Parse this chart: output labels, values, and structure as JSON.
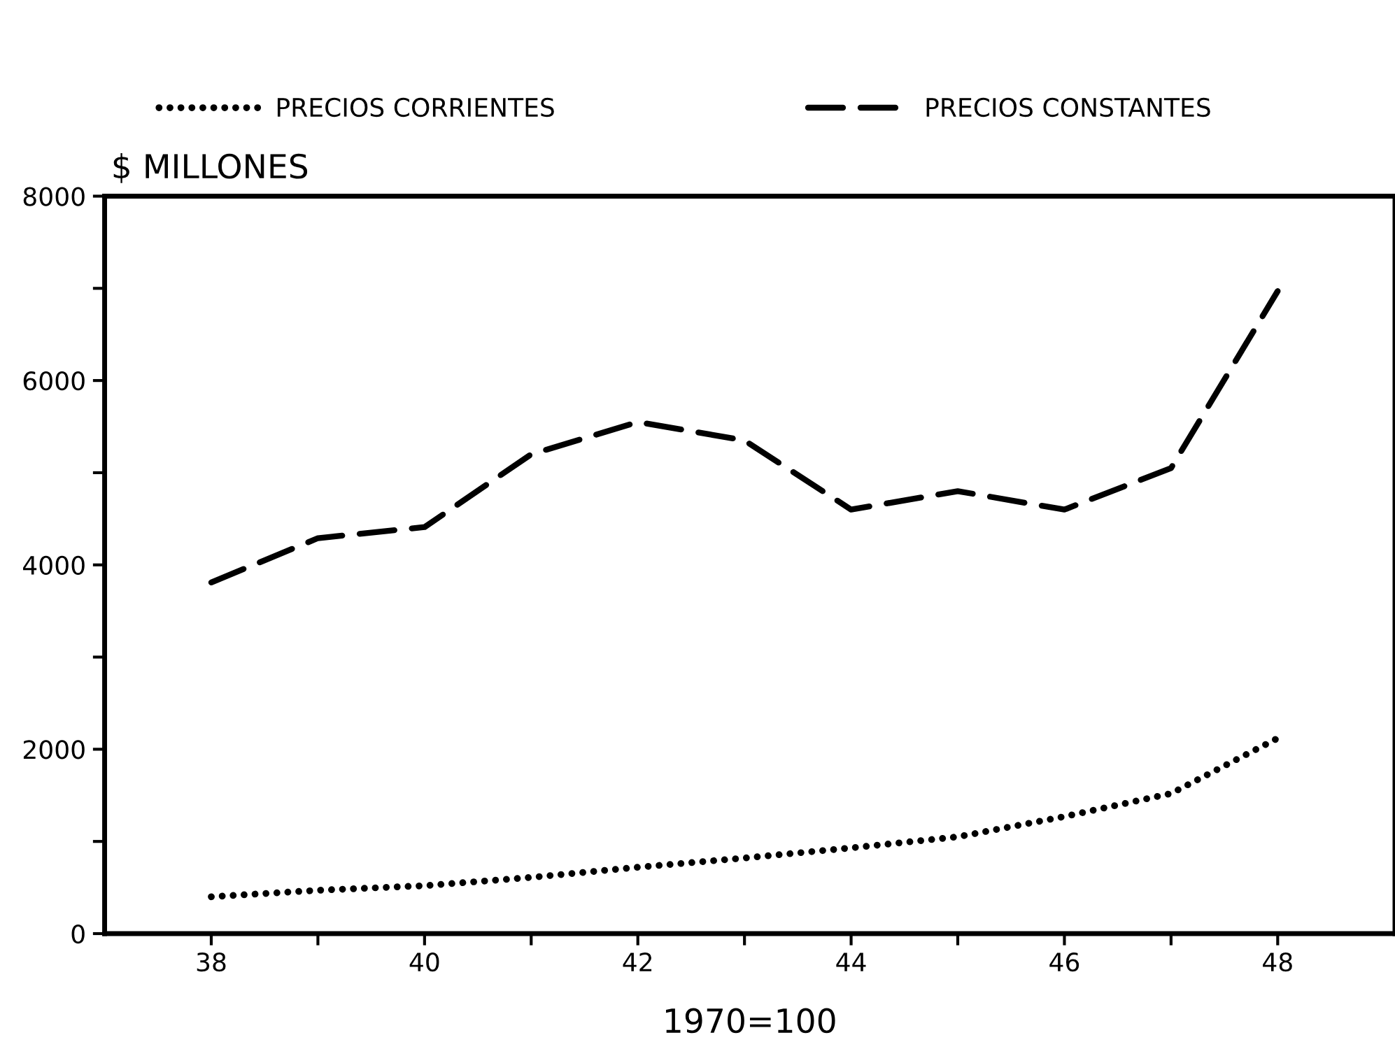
{
  "chart_data": {
    "type": "line",
    "ylabel": "$ MILLONES",
    "xlabel": "1970=100",
    "x": [
      38,
      39,
      40,
      41,
      42,
      43,
      44,
      45,
      46,
      47,
      48
    ],
    "series": [
      {
        "name": "PRECIOS CORRIENTES",
        "color": "#000000",
        "line_style": "dotted",
        "values": [
          400,
          470,
          520,
          610,
          720,
          820,
          930,
          1050,
          1270,
          1520,
          2120
        ]
      },
      {
        "name": "PRECIOS CONSTANTES",
        "color": "#000000",
        "line_style": "dashed",
        "values": [
          3810,
          4290,
          4410,
          5200,
          5550,
          5350,
          4600,
          4800,
          4600,
          5050,
          6970
        ]
      }
    ],
    "xlim": [
      37,
      49.1
    ],
    "ylim": [
      0,
      8000
    ],
    "xticks": [
      38,
      {
        "value": 39,
        "label": null
      },
      40,
      {
        "value": 41,
        "label": null
      },
      42,
      {
        "value": 43,
        "label": null
      },
      44,
      {
        "value": 45,
        "label": null
      },
      46,
      {
        "value": 47,
        "label": null
      },
      48
    ],
    "yticks": [
      0,
      {
        "value": 1000,
        "label": null
      },
      2000,
      {
        "value": 3000,
        "label": null
      },
      4000,
      {
        "value": 5000,
        "label": null
      },
      6000,
      {
        "value": 7000,
        "label": null
      },
      8000
    ],
    "grid": false,
    "legend": "top",
    "marker": "none"
  }
}
